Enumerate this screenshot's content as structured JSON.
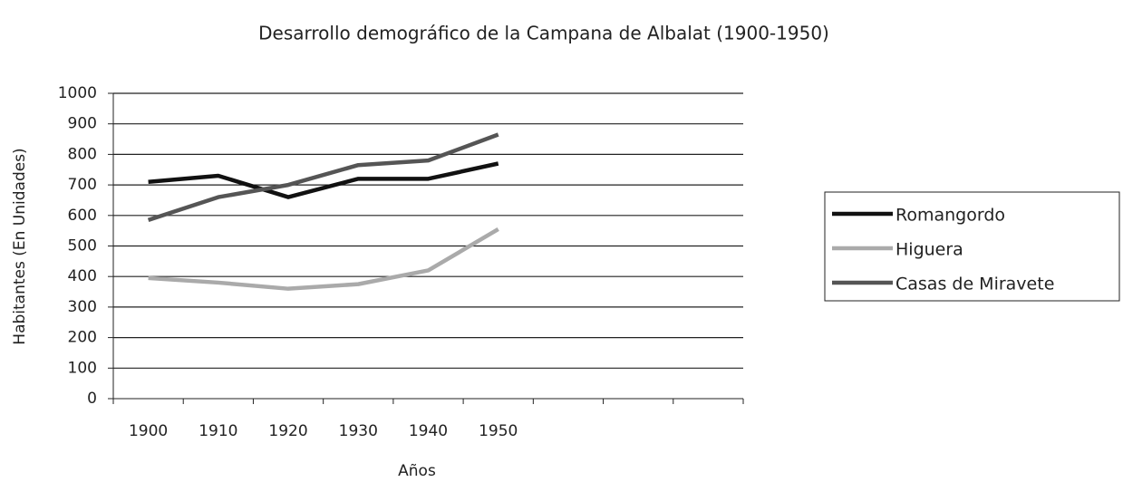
{
  "chart_data": {
    "type": "line",
    "title": "Desarrollo demográfico de la Campana de Albalat (1900-1950)",
    "x_label": "Años",
    "y_label": "Habitantes (En Unidades)",
    "categories": [
      "1900",
      "1910",
      "1920",
      "1930",
      "1940",
      "1950",
      null,
      null,
      null
    ],
    "series": [
      {
        "name": "Romangordo",
        "color": "#111111",
        "values": [
          710,
          730,
          660,
          720,
          720,
          770,
          null,
          null,
          null
        ]
      },
      {
        "name": "Higuera",
        "color": "#aaaaaa",
        "values": [
          395,
          380,
          360,
          375,
          420,
          555,
          null,
          null,
          null
        ]
      },
      {
        "name": "Casas de Miravete",
        "color": "#555555",
        "values": [
          585,
          660,
          700,
          765,
          780,
          865,
          null,
          null,
          null
        ]
      }
    ],
    "ylim": [
      0,
      1000
    ],
    "yticks": [
      0,
      100,
      200,
      300,
      400,
      500,
      600,
      700,
      800,
      900,
      1000
    ],
    "grid": true,
    "legend": "right"
  }
}
